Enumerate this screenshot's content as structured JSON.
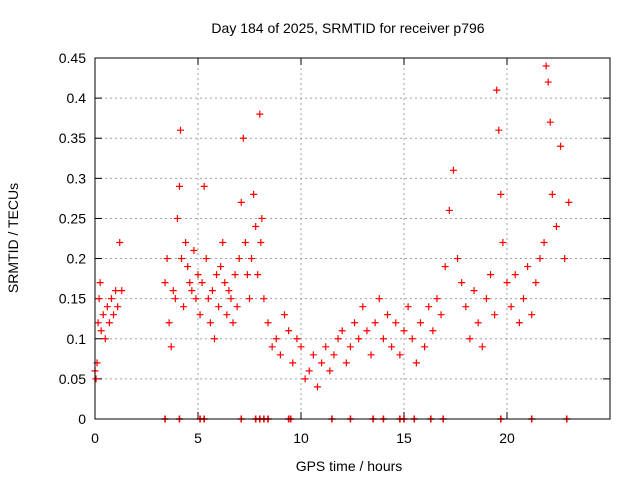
{
  "chart_data": {
    "type": "scatter",
    "title": "Day 184 of 2025, SRMTID for receiver p796",
    "xlabel": "GPS time / hours",
    "ylabel": "SRMTID / TECUs",
    "xlim": [
      0,
      25
    ],
    "ylim": [
      0,
      0.45
    ],
    "xticks": [
      0,
      5,
      10,
      15,
      20
    ],
    "xtick_labels": [
      "0",
      "5",
      "10",
      "15",
      "20"
    ],
    "yticks": [
      0,
      0.05,
      0.1,
      0.15,
      0.2,
      0.25,
      0.3,
      0.35,
      0.4,
      0.45
    ],
    "ytick_labels": [
      "0",
      "0.05",
      "0.1",
      "0.15",
      "0.2",
      "0.25",
      "0.3",
      "0.35",
      "0.4",
      "0.45"
    ],
    "grid": true,
    "marker": "+",
    "color": "#ff0000",
    "series": [
      {
        "name": "SRMTID",
        "x": [
          0.0,
          0.05,
          0.1,
          0.15,
          0.2,
          0.25,
          0.3,
          0.4,
          0.5,
          0.6,
          0.7,
          0.8,
          0.9,
          1.0,
          1.1,
          1.2,
          1.3,
          3.4,
          3.5,
          3.6,
          3.7,
          3.8,
          3.9,
          4.0,
          4.1,
          4.15,
          4.2,
          4.3,
          4.4,
          4.5,
          4.6,
          4.7,
          4.8,
          4.9,
          5.0,
          5.1,
          5.2,
          5.3,
          5.4,
          5.5,
          5.6,
          5.7,
          5.8,
          5.9,
          6.0,
          6.1,
          6.2,
          6.3,
          6.4,
          6.5,
          6.6,
          6.7,
          6.8,
          6.9,
          7.0,
          7.1,
          7.2,
          7.3,
          7.4,
          7.5,
          7.6,
          7.7,
          7.8,
          7.9,
          8.0,
          8.05,
          8.1,
          8.2,
          8.4,
          8.6,
          8.8,
          9.0,
          9.2,
          9.4,
          9.6,
          9.8,
          10.0,
          10.2,
          10.4,
          10.6,
          10.8,
          11.0,
          11.2,
          11.4,
          11.6,
          11.8,
          12.0,
          12.2,
          12.4,
          12.6,
          12.8,
          13.0,
          13.2,
          13.4,
          13.6,
          13.8,
          14.0,
          14.2,
          14.4,
          14.6,
          14.8,
          15.0,
          15.2,
          15.4,
          15.6,
          15.8,
          16.0,
          16.2,
          16.4,
          16.6,
          16.8,
          17.0,
          17.2,
          17.4,
          17.6,
          17.8,
          18.0,
          18.2,
          18.4,
          18.6,
          18.8,
          19.0,
          19.2,
          19.4,
          19.5,
          19.6,
          19.7,
          19.8,
          20.0,
          20.2,
          20.4,
          20.6,
          20.8,
          21.0,
          21.2,
          21.4,
          21.6,
          21.8,
          21.9,
          22.0,
          22.1,
          22.2,
          22.4,
          22.6,
          22.8,
          23.0
        ],
        "y": [
          0.06,
          0.05,
          0.07,
          0.12,
          0.15,
          0.17,
          0.11,
          0.13,
          0.1,
          0.14,
          0.12,
          0.15,
          0.13,
          0.16,
          0.14,
          0.22,
          0.16,
          0.17,
          0.2,
          0.12,
          0.09,
          0.16,
          0.15,
          0.25,
          0.29,
          0.36,
          0.2,
          0.14,
          0.22,
          0.19,
          0.17,
          0.16,
          0.21,
          0.15,
          0.18,
          0.13,
          0.17,
          0.29,
          0.2,
          0.15,
          0.12,
          0.16,
          0.1,
          0.18,
          0.14,
          0.19,
          0.22,
          0.17,
          0.13,
          0.16,
          0.15,
          0.12,
          0.18,
          0.14,
          0.2,
          0.27,
          0.35,
          0.22,
          0.18,
          0.15,
          0.2,
          0.28,
          0.24,
          0.18,
          0.38,
          0.22,
          0.25,
          0.15,
          0.12,
          0.09,
          0.1,
          0.08,
          0.13,
          0.11,
          0.07,
          0.1,
          0.09,
          0.05,
          0.06,
          0.08,
          0.04,
          0.07,
          0.09,
          0.06,
          0.08,
          0.1,
          0.11,
          0.07,
          0.09,
          0.12,
          0.1,
          0.14,
          0.11,
          0.08,
          0.12,
          0.15,
          0.1,
          0.13,
          0.09,
          0.12,
          0.08,
          0.11,
          0.14,
          0.1,
          0.07,
          0.12,
          0.09,
          0.14,
          0.11,
          0.15,
          0.13,
          0.19,
          0.26,
          0.31,
          0.2,
          0.17,
          0.14,
          0.1,
          0.16,
          0.12,
          0.09,
          0.15,
          0.18,
          0.13,
          0.41,
          0.36,
          0.28,
          0.22,
          0.17,
          0.14,
          0.18,
          0.12,
          0.15,
          0.19,
          0.13,
          0.17,
          0.2,
          0.22,
          0.44,
          0.42,
          0.37,
          0.28,
          0.24,
          0.34,
          0.2,
          0.27
        ]
      }
    ],
    "gap_markers": {
      "y": 0,
      "x": [
        3.4,
        4.1,
        5.1,
        5.3,
        7.1,
        7.8,
        8.0,
        8.2,
        8.4,
        9.4,
        9.5,
        11.5,
        12.4,
        13.5,
        14.0,
        14.8,
        15.0,
        15.5,
        16.3,
        16.9,
        19.7,
        21.2,
        22.9
      ]
    }
  }
}
